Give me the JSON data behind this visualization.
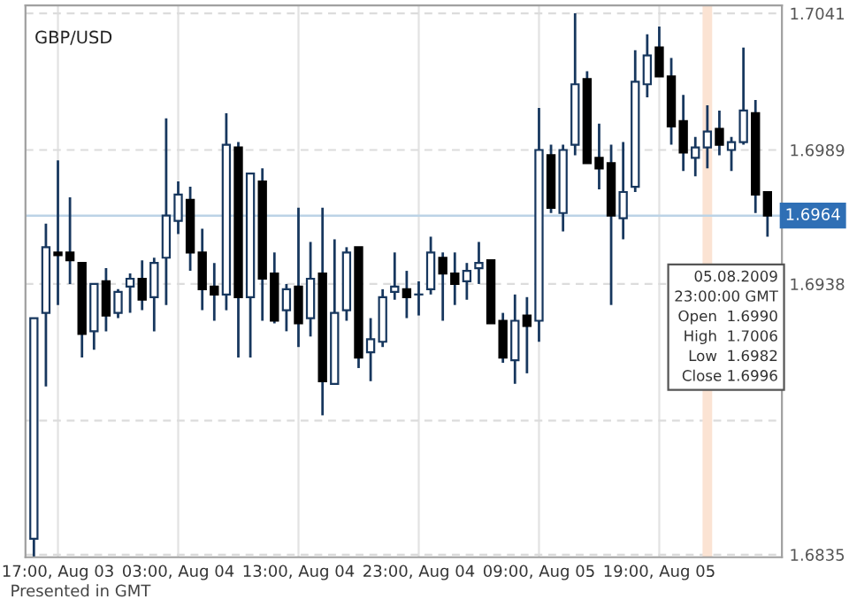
{
  "chart_data": {
    "type": "candlestick",
    "title": "GBP/USD",
    "x": [
      "2009-08-03T15:00",
      "2009-08-03T16:00",
      "2009-08-03T17:00",
      "2009-08-03T18:00",
      "2009-08-03T19:00",
      "2009-08-03T20:00",
      "2009-08-03T21:00",
      "2009-08-03T22:00",
      "2009-08-03T23:00",
      "2009-08-04T00:00",
      "2009-08-04T01:00",
      "2009-08-04T02:00",
      "2009-08-04T03:00",
      "2009-08-04T04:00",
      "2009-08-04T05:00",
      "2009-08-04T06:00",
      "2009-08-04T07:00",
      "2009-08-04T08:00",
      "2009-08-04T09:00",
      "2009-08-04T10:00",
      "2009-08-04T11:00",
      "2009-08-04T12:00",
      "2009-08-04T13:00",
      "2009-08-04T14:00",
      "2009-08-04T15:00",
      "2009-08-04T16:00",
      "2009-08-04T17:00",
      "2009-08-04T18:00",
      "2009-08-04T19:00",
      "2009-08-04T20:00",
      "2009-08-04T21:00",
      "2009-08-04T22:00",
      "2009-08-04T23:00",
      "2009-08-05T00:00",
      "2009-08-05T01:00",
      "2009-08-05T02:00",
      "2009-08-05T03:00",
      "2009-08-05T04:00",
      "2009-08-05T05:00",
      "2009-08-05T06:00",
      "2009-08-05T07:00",
      "2009-08-05T08:00",
      "2009-08-05T09:00",
      "2009-08-05T10:00",
      "2009-08-05T11:00",
      "2009-08-05T12:00",
      "2009-08-05T13:00",
      "2009-08-05T14:00",
      "2009-08-05T15:00",
      "2009-08-05T16:00",
      "2009-08-05T17:00",
      "2009-08-05T18:00",
      "2009-08-05T19:00",
      "2009-08-05T20:00",
      "2009-08-05T21:00",
      "2009-08-05T22:00",
      "2009-08-05T23:00",
      "2009-08-06T00:00",
      "2009-08-06T01:00",
      "2009-08-06T02:00",
      "2009-08-06T03:00",
      "2009-08-06T04:00"
    ],
    "ohlc": [
      [
        1.6841,
        1.6925,
        1.6834,
        1.6925
      ],
      [
        1.6927,
        1.6961,
        1.6899,
        1.6952
      ],
      [
        1.695,
        1.6985,
        1.693,
        1.6949
      ],
      [
        1.695,
        1.6971,
        1.6938,
        1.6947
      ],
      [
        1.6946,
        1.6946,
        1.691,
        1.6919
      ],
      [
        1.692,
        1.6938,
        1.6913,
        1.6938
      ],
      [
        1.6939,
        1.6944,
        1.692,
        1.6926
      ],
      [
        1.6927,
        1.6936,
        1.6925,
        1.6935
      ],
      [
        1.6937,
        1.6942,
        1.6927,
        1.694
      ],
      [
        1.694,
        1.6947,
        1.6928,
        1.6932
      ],
      [
        1.6933,
        1.6948,
        1.692,
        1.6946
      ],
      [
        1.6948,
        1.7001,
        1.693,
        1.6964
      ],
      [
        1.6962,
        1.6977,
        1.6957,
        1.6972
      ],
      [
        1.697,
        1.6975,
        1.6943,
        1.695
      ],
      [
        1.695,
        1.6959,
        1.6928,
        1.6936
      ],
      [
        1.6937,
        1.6946,
        1.6924,
        1.6934
      ],
      [
        1.6934,
        1.7003,
        1.6928,
        1.6991
      ],
      [
        1.699,
        1.6992,
        1.691,
        1.6933
      ],
      [
        1.6933,
        1.698,
        1.691,
        1.698
      ],
      [
        1.6977,
        1.6982,
        1.6924,
        1.694
      ],
      [
        1.6942,
        1.695,
        1.6923,
        1.6924
      ],
      [
        1.6928,
        1.6938,
        1.692,
        1.6936
      ],
      [
        1.6937,
        1.6967,
        1.6914,
        1.6923
      ],
      [
        1.6925,
        1.6954,
        1.6918,
        1.694
      ],
      [
        1.6942,
        1.6967,
        1.6888,
        1.6901
      ],
      [
        1.69,
        1.6955,
        1.69,
        1.6927
      ],
      [
        1.6928,
        1.6952,
        1.6924,
        1.695
      ],
      [
        1.6952,
        1.6952,
        1.6906,
        1.691
      ],
      [
        1.6912,
        1.6925,
        1.6901,
        1.6917
      ],
      [
        1.6916,
        1.6936,
        1.6914,
        1.6933
      ],
      [
        1.6935,
        1.695,
        1.6932,
        1.6937
      ],
      [
        1.6936,
        1.6943,
        1.6925,
        1.6933
      ],
      [
        1.6934,
        1.6939,
        1.6926,
        1.6934
      ],
      [
        1.6936,
        1.6956,
        1.6934,
        1.695
      ],
      [
        1.6948,
        1.695,
        1.6924,
        1.6942
      ],
      [
        1.6942,
        1.695,
        1.693,
        1.6938
      ],
      [
        1.6939,
        1.6946,
        1.6932,
        1.6943
      ],
      [
        1.6944,
        1.6954,
        1.6938,
        1.6946
      ],
      [
        1.6947,
        1.6947,
        1.6923,
        1.6923
      ],
      [
        1.6924,
        1.6927,
        1.6908,
        1.691
      ],
      [
        1.6909,
        1.6934,
        1.69,
        1.6924
      ],
      [
        1.6926,
        1.6933,
        1.6904,
        1.6922
      ],
      [
        1.6924,
        1.7005,
        1.6916,
        1.6989
      ],
      [
        1.6987,
        1.6991,
        1.6965,
        1.6967
      ],
      [
        1.6965,
        1.6991,
        1.6958,
        1.6989
      ],
      [
        1.6991,
        1.7041,
        1.6987,
        1.7014
      ],
      [
        1.7016,
        1.7019,
        1.6984,
        1.6984
      ],
      [
        1.6986,
        1.6999,
        1.6974,
        1.6982
      ],
      [
        1.6984,
        1.6991,
        1.693,
        1.6964
      ],
      [
        1.6963,
        1.6992,
        1.6955,
        1.6973
      ],
      [
        1.6975,
        1.7027,
        1.6973,
        1.7015
      ],
      [
        1.7014,
        1.7033,
        1.7009,
        1.7025
      ],
      [
        1.7028,
        1.7036,
        1.7017,
        1.7017
      ],
      [
        1.7017,
        1.7024,
        1.6991,
        1.6998
      ],
      [
        1.7,
        1.701,
        1.6981,
        1.6988
      ],
      [
        1.6986,
        1.6994,
        1.6979,
        1.699
      ],
      [
        1.699,
        1.7006,
        1.6982,
        1.6996
      ],
      [
        1.6997,
        1.7004,
        1.6987,
        1.6991
      ],
      [
        1.6989,
        1.6994,
        1.6981,
        1.6992
      ],
      [
        1.6992,
        1.7028,
        1.6991,
        1.7004
      ],
      [
        1.7003,
        1.7008,
        1.6965,
        1.6972
      ],
      [
        1.6973,
        1.6973,
        1.6956,
        1.6964
      ]
    ],
    "color": "#17375e",
    "colors": [
      "#ffffff",
      "#ffffff",
      "#000000",
      "#000000",
      "#000000",
      "#ffffff",
      "#000000",
      "#ffffff",
      "#ffffff",
      "#000000",
      "#ffffff",
      "#ffffff",
      "#ffffff",
      "#000000",
      "#000000",
      "#000000",
      "#ffffff",
      "#000000",
      "#ffffff",
      "#000000",
      "#000000",
      "#ffffff",
      "#000000",
      "#ffffff",
      "#000000",
      "#ffffff",
      "#ffffff",
      "#000000",
      "#ffffff",
      "#ffffff",
      "#ffffff",
      "#000000",
      "#ffffff",
      "#ffffff",
      "#000000",
      "#000000",
      "#ffffff",
      "#ffffff",
      "#000000",
      "#000000",
      "#ffffff",
      "#000000",
      "#ffffff",
      "#000000",
      "#ffffff",
      "#ffffff",
      "#000000",
      "#000000",
      "#000000",
      "#ffffff",
      "#ffffff",
      "#ffffff",
      "#000000",
      "#000000",
      "#000000",
      "#ffffff",
      "#ffffff",
      "#000000",
      "#ffffff",
      "#ffffff",
      "#000000",
      "#000000"
    ],
    "xlim": [
      "2009-08-03T14:18",
      "2009-08-06T05:12"
    ],
    "xticks": [
      {
        "value": "2009-08-03T17:00",
        "label": "17:00, Aug 03"
      },
      {
        "value": "2009-08-04T03:00",
        "label": "03:00, Aug 04"
      },
      {
        "value": "2009-08-04T13:00",
        "label": "13:00, Aug 04"
      },
      {
        "value": "2009-08-04T23:00",
        "label": "23:00, Aug 04"
      },
      {
        "value": "2009-08-05T09:00",
        "label": "09:00, Aug 05"
      },
      {
        "value": "2009-08-05T19:00",
        "label": "19:00, Aug 05"
      }
    ],
    "ylim": [
      1.6834,
      1.7044
    ],
    "yticks": [
      1.7041,
      1.6989,
      1.6938,
      {
        "value": 1.6886,
        "label": null
      },
      1.6835
    ],
    "grid": true,
    "ref_lines": [
      {
        "axis": "y",
        "value": 1.6964,
        "label": "1.6964",
        "color": "#bcd3e6"
      }
    ],
    "bands": [
      {
        "axis": "x",
        "from": "2009-08-05T22:36",
        "to": "2009-08-05T23:24",
        "color": "#fbe3d3"
      }
    ],
    "annotations": [
      "05.08.2009\n23:00:00 GMT\nOpen  1.6990\nHigh  1.7006\nLow  1.6982\nClose 1.6996",
      "Presented in GMT"
    ]
  }
}
